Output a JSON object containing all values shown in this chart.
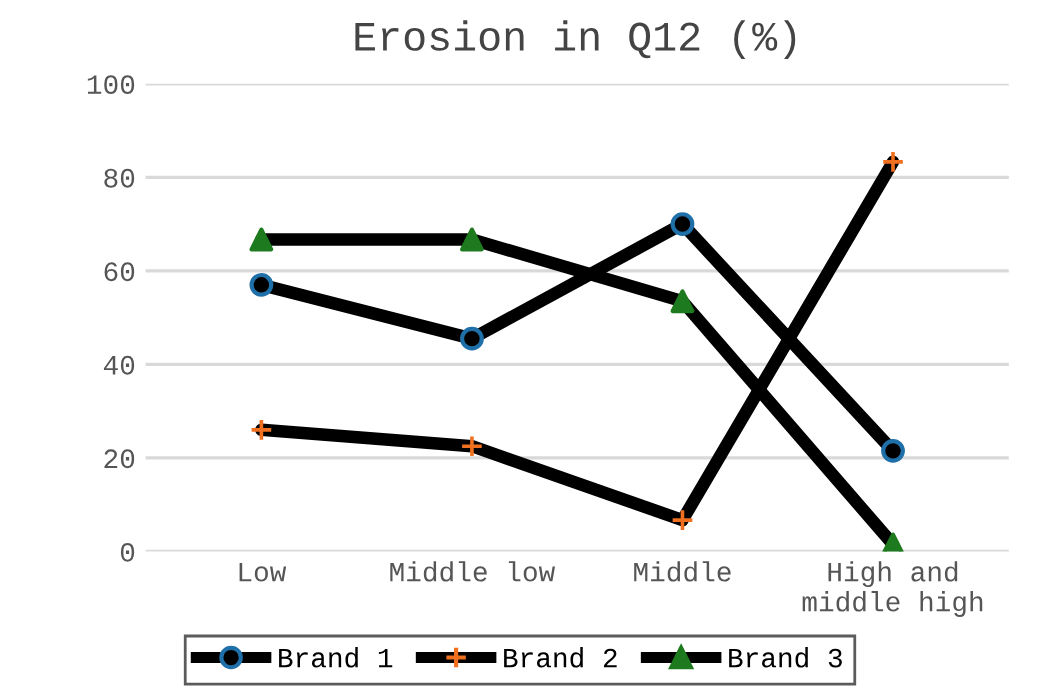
{
  "chart_data": {
    "type": "line",
    "title": "Erosion in Q12 (%)",
    "categories": [
      "Low",
      "Middle low",
      "Middle",
      "High and\nmiddle high"
    ],
    "series": [
      {
        "name": "Brand 1",
        "color": "#000000",
        "colors": [
          "#1f6fa8",
          "#1f6fa8",
          "#1f6fa8",
          "#1f6fa8"
        ],
        "marker": "circle",
        "values": [
          57,
          45.5,
          70,
          21.5
        ]
      },
      {
        "name": "Brand 2",
        "color": "#000000",
        "colors": [
          "#f07020",
          "#f07020",
          "#f07020",
          "#f07020"
        ],
        "marker": "cross",
        "values": [
          26,
          22.5,
          6.7,
          83.3
        ]
      },
      {
        "name": "Brand 3",
        "color": "#000000",
        "colors": [
          "#1e7a1e",
          "#1e7a1e",
          "#1e7a1e",
          "#1e7a1e"
        ],
        "marker": "triangle",
        "values": [
          66.7,
          66.7,
          53.5,
          1.5
        ]
      }
    ],
    "ylim": [
      0,
      100
    ],
    "yticks": [
      0,
      20,
      40,
      60,
      80,
      100
    ],
    "grid": "y",
    "legend": "bottom",
    "line_style": "solid"
  }
}
